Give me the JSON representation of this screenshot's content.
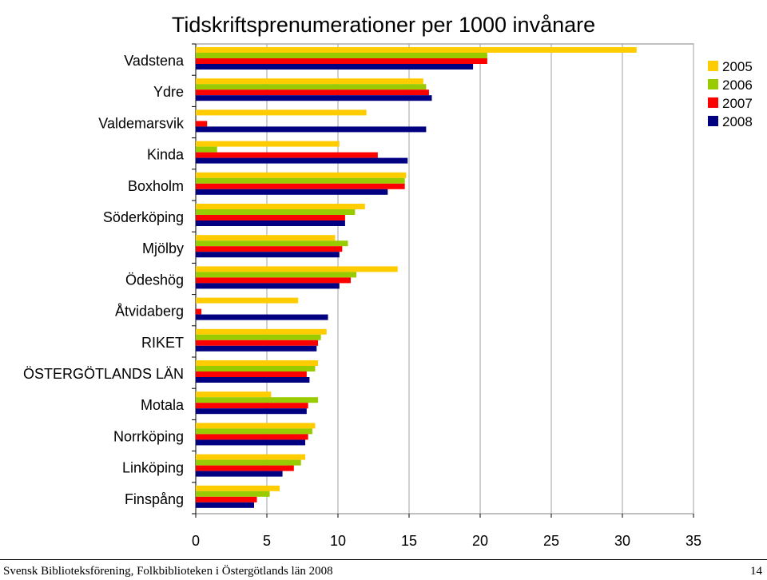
{
  "chart_data": {
    "type": "bar",
    "orientation": "horizontal",
    "title": "Tidskriftsprenumerationer per 1000 invånare",
    "categories": [
      "Vadstena",
      "Ydre",
      "Valdemarsvik",
      "Kinda",
      "Boxholm",
      "Söderköping",
      "Mjölby",
      "Ödeshög",
      "Åtvidaberg",
      "RIKET",
      "ÖSTERGÖTLANDS LÄN",
      "Motala",
      "Norrköping",
      "Linköping",
      "Finspång"
    ],
    "series": [
      {
        "name": "2005",
        "color": "#FFCC00",
        "values": [
          31.0,
          16.0,
          12.0,
          10.1,
          14.8,
          11.9,
          9.8,
          14.2,
          7.2,
          9.2,
          8.6,
          5.3,
          8.4,
          7.7,
          5.9
        ]
      },
      {
        "name": "2006",
        "color": "#99CC00",
        "values": [
          20.5,
          16.2,
          0.0,
          1.5,
          14.7,
          11.2,
          10.7,
          11.3,
          0.0,
          8.8,
          8.4,
          8.6,
          8.2,
          7.4,
          5.2
        ]
      },
      {
        "name": "2007",
        "color": "#FF0000",
        "values": [
          20.5,
          16.4,
          0.8,
          12.8,
          14.7,
          10.5,
          10.3,
          10.9,
          0.4,
          8.6,
          7.8,
          7.9,
          7.9,
          6.9,
          4.3
        ]
      },
      {
        "name": "2008",
        "color": "#000080",
        "values": [
          19.5,
          16.6,
          16.2,
          14.9,
          13.5,
          10.5,
          10.1,
          10.1,
          9.3,
          8.5,
          8.0,
          7.8,
          7.7,
          6.1,
          4.1
        ]
      }
    ],
    "xlim": [
      0,
      35
    ],
    "xticks": [
      "0",
      "5",
      "10",
      "15",
      "20",
      "25",
      "30",
      "35"
    ],
    "grid": true,
    "legend": "top-right"
  },
  "footer": {
    "left": "Svensk Biblioteksförening, Folkbiblioteken i Östergötlands län 2008",
    "right": "14"
  }
}
